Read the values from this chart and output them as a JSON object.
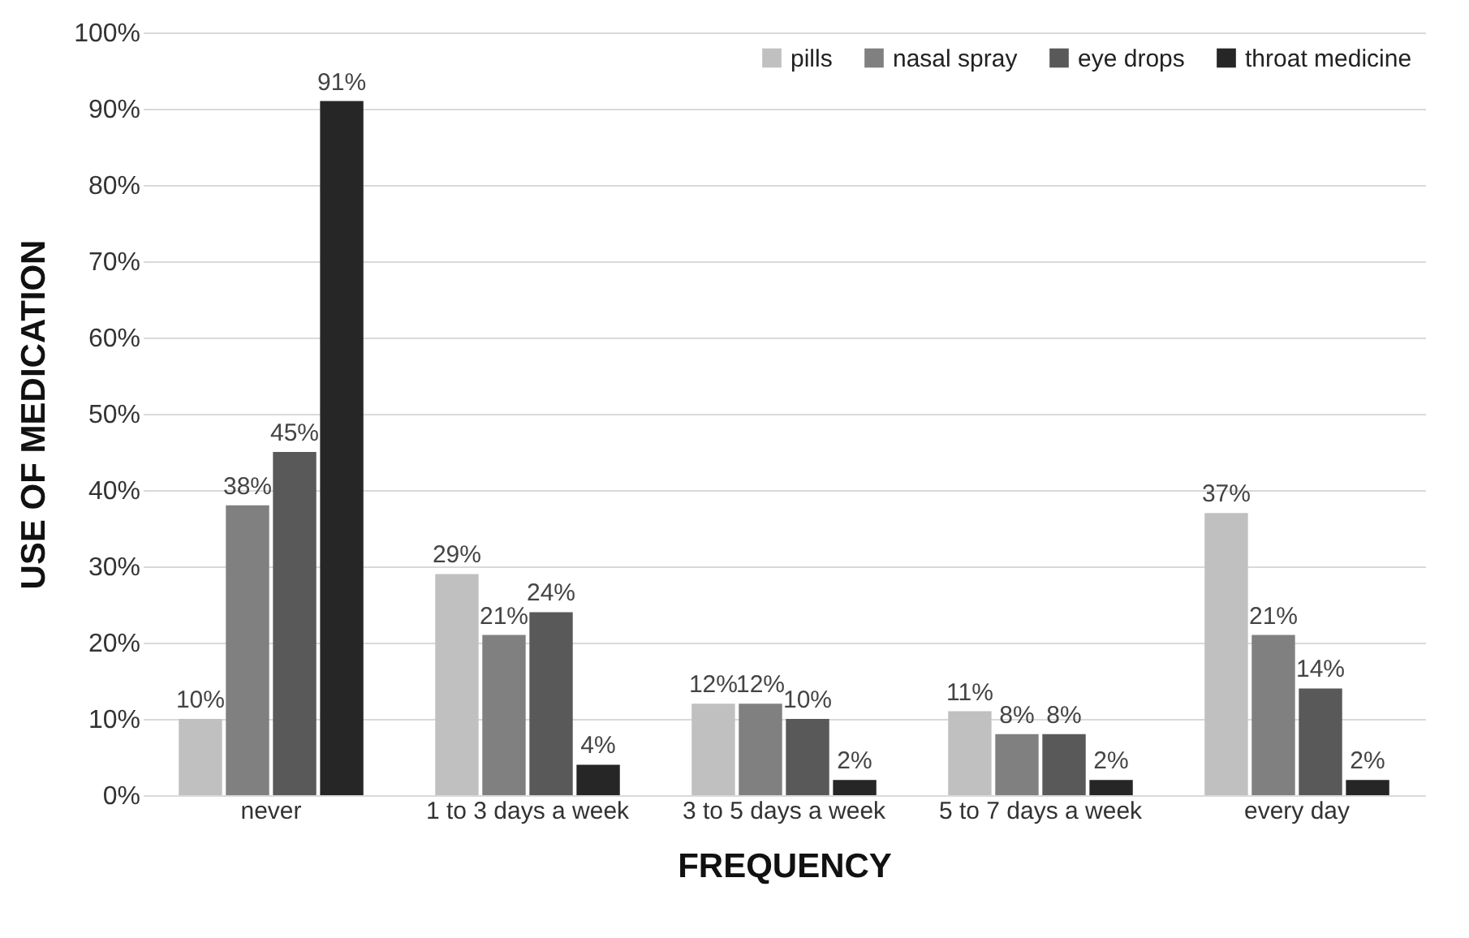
{
  "chart_data": {
    "type": "bar",
    "xlabel": "FREQUENCY",
    "ylabel": "USE OF MEDICATION",
    "categories": [
      "never",
      "1 to 3 days a week",
      "3 to 5 days a week",
      "5 to 7 days a week",
      "every day"
    ],
    "series": [
      {
        "name": "pills",
        "color": "#c0c0c0",
        "values": [
          10,
          29,
          12,
          11,
          37
        ],
        "value_labels": [
          "10%",
          "29%",
          "12%",
          "11%",
          "37%"
        ]
      },
      {
        "name": "nasal spray",
        "color": "#808080",
        "values": [
          38,
          21,
          12,
          8,
          21
        ],
        "value_labels": [
          "38%",
          "21%",
          "12%",
          "8%",
          "21%"
        ]
      },
      {
        "name": "eye drops",
        "color": "#595959",
        "values": [
          45,
          24,
          10,
          8,
          14
        ],
        "value_labels": [
          "45%",
          "24%",
          "10%",
          "8%",
          "14%"
        ]
      },
      {
        "name": "throat medicine",
        "color": "#262626",
        "values": [
          91,
          4,
          2,
          2,
          2
        ],
        "value_labels": [
          "91%",
          "4%",
          "2%",
          "2%",
          "2%"
        ]
      }
    ],
    "ylim": [
      0,
      100
    ],
    "yticks": [
      {
        "value": 0,
        "label": "0%"
      },
      {
        "value": 10,
        "label": "10%"
      },
      {
        "value": 20,
        "label": "20%"
      },
      {
        "value": 30,
        "label": "30%"
      },
      {
        "value": 40,
        "label": "40%"
      },
      {
        "value": 50,
        "label": "50%"
      },
      {
        "value": 60,
        "label": "60%"
      },
      {
        "value": 70,
        "label": "70%"
      },
      {
        "value": 80,
        "label": "80%"
      },
      {
        "value": 90,
        "label": "90%"
      },
      {
        "value": 100,
        "label": "100%"
      }
    ],
    "grid": "y",
    "legend": "top right"
  }
}
